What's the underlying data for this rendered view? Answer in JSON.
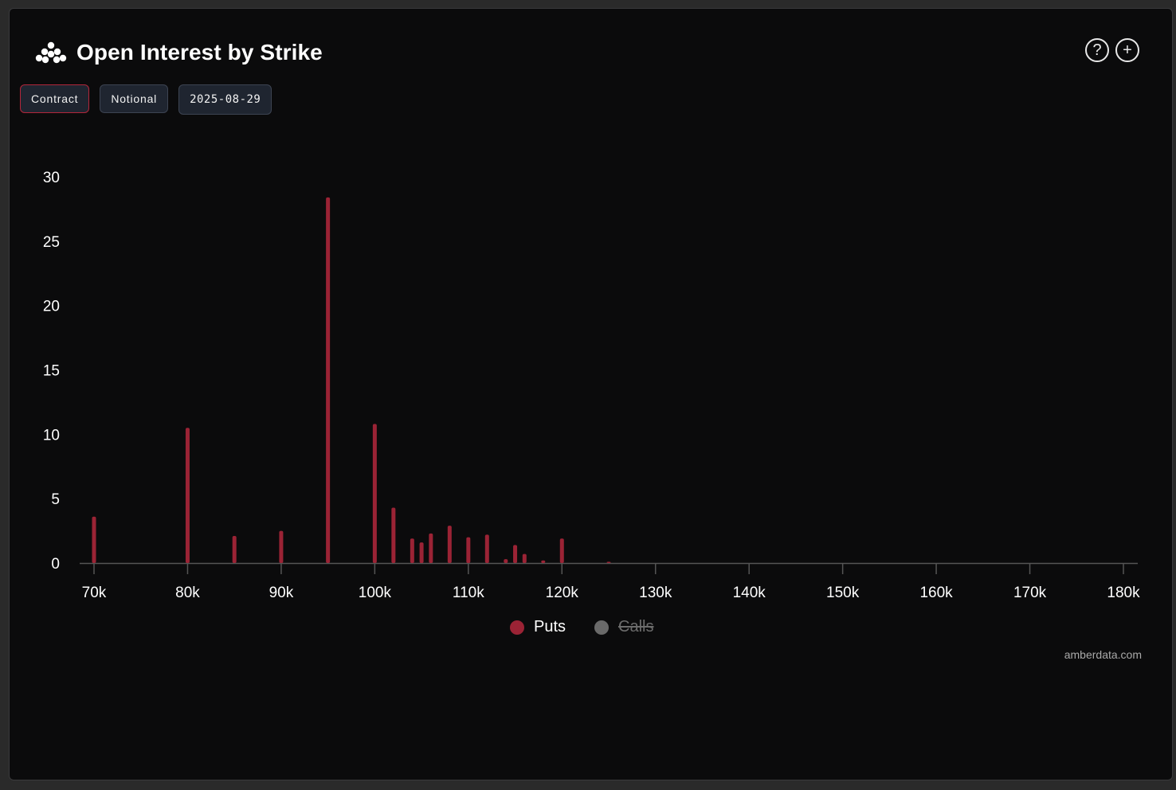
{
  "header": {
    "title": "Open Interest by Strike"
  },
  "controls": {
    "contract_label": "Contract",
    "notional_label": "Notional",
    "date_label": "2025-08-29"
  },
  "icons": {
    "help": "help-icon",
    "add": "add-icon",
    "logo": "amberdata-logo-icon"
  },
  "colors": {
    "puts": "#9b2335",
    "calls": "#6a6a6a",
    "background": "#0b0b0c",
    "axis": "#555555",
    "text": "#ffffff"
  },
  "legend": {
    "puts_label": "Puts",
    "calls_label": "Calls",
    "calls_hidden": true
  },
  "credit": "amberdata.com",
  "chart_data": {
    "type": "bar",
    "title": "Open Interest by Strike",
    "xlabel": "",
    "ylabel": "",
    "xlim": [
      70000,
      180000
    ],
    "ylim": [
      0,
      30
    ],
    "x_ticks": [
      70000,
      80000,
      90000,
      100000,
      110000,
      120000,
      130000,
      140000,
      150000,
      160000,
      170000,
      180000
    ],
    "x_tick_labels": [
      "70k",
      "80k",
      "90k",
      "100k",
      "110k",
      "120k",
      "130k",
      "140k",
      "150k",
      "160k",
      "170k",
      "180k"
    ],
    "y_ticks": [
      0,
      5,
      10,
      15,
      20,
      25,
      30
    ],
    "y_tick_labels": [
      "0",
      "5",
      "10",
      "15",
      "20",
      "25",
      "30"
    ],
    "grid": false,
    "legend_position": "bottom",
    "series": [
      {
        "name": "Puts",
        "color": "#9b2335",
        "points": [
          {
            "x": 70000,
            "y": 3.6
          },
          {
            "x": 80000,
            "y": 10.5
          },
          {
            "x": 85000,
            "y": 2.1
          },
          {
            "x": 90000,
            "y": 2.5
          },
          {
            "x": 95000,
            "y": 28.4
          },
          {
            "x": 100000,
            "y": 10.8
          },
          {
            "x": 102000,
            "y": 4.3
          },
          {
            "x": 104000,
            "y": 1.9
          },
          {
            "x": 105000,
            "y": 1.6
          },
          {
            "x": 106000,
            "y": 2.3
          },
          {
            "x": 108000,
            "y": 2.9
          },
          {
            "x": 110000,
            "y": 2.0
          },
          {
            "x": 112000,
            "y": 2.2
          },
          {
            "x": 114000,
            "y": 0.3
          },
          {
            "x": 115000,
            "y": 1.4
          },
          {
            "x": 116000,
            "y": 0.7
          },
          {
            "x": 118000,
            "y": 0.2
          },
          {
            "x": 120000,
            "y": 1.9
          },
          {
            "x": 125000,
            "y": 0.1
          }
        ]
      },
      {
        "name": "Calls",
        "color": "#6a6a6a",
        "hidden": true,
        "points": []
      }
    ]
  }
}
